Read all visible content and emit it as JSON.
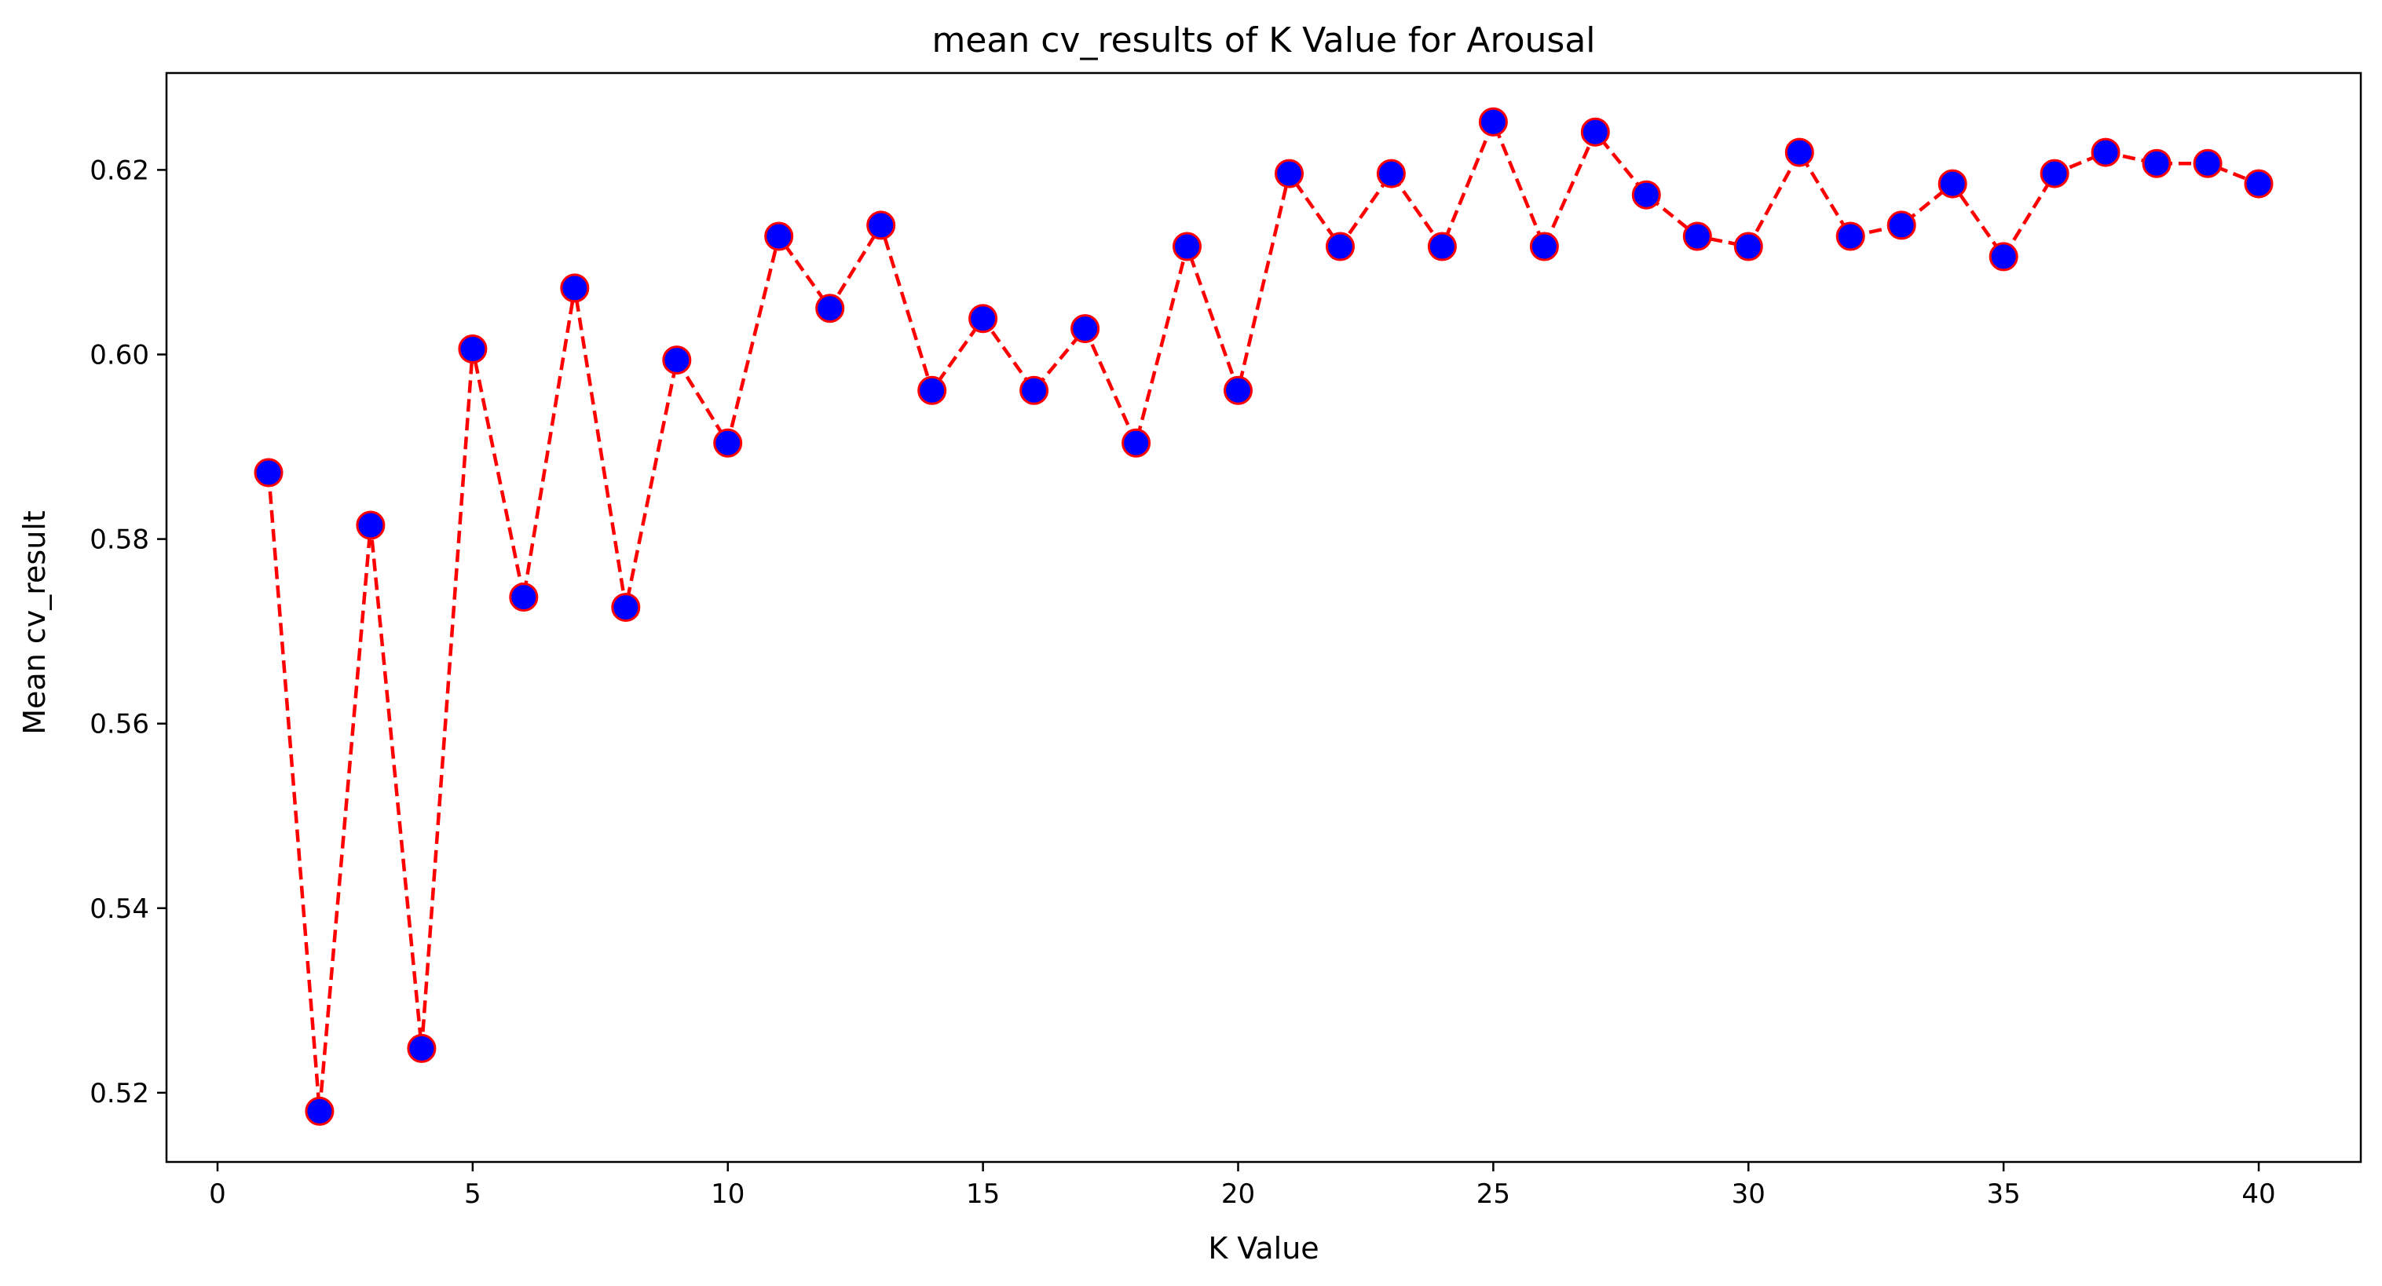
{
  "chart_data": {
    "type": "line",
    "title": "mean cv_results of  K Value for Arousal",
    "xlabel": "K Value",
    "ylabel": "Mean cv_result",
    "xlim": [
      -1,
      42
    ],
    "ylim": [
      0.5125,
      0.6305
    ],
    "xticks": [
      "0",
      "5",
      "10",
      "15",
      "20",
      "25",
      "30",
      "35",
      "40"
    ],
    "yticks": [
      "0.52",
      "0.54",
      "0.56",
      "0.58",
      "0.60",
      "0.62"
    ],
    "grid": false,
    "legend": false,
    "colors": {
      "line": "#ff0000",
      "marker_fill": "#0000ff",
      "marker_edge": "#ff0000",
      "axes": "#000000"
    },
    "line_style": "dashed",
    "marker": "circle",
    "series": [
      {
        "x": [
          1,
          2,
          3,
          4,
          5,
          6,
          7,
          8,
          9,
          10,
          11,
          12,
          13,
          14,
          15,
          16,
          17,
          18,
          19,
          20,
          21,
          22,
          23,
          24,
          25,
          26,
          27,
          28,
          29,
          30,
          31,
          32,
          33,
          34,
          35,
          36,
          37,
          38,
          39,
          40
        ],
        "values": [
          0.5872,
          0.518,
          0.5815,
          0.5248,
          0.6006,
          0.5737,
          0.6072,
          0.5726,
          0.5994,
          0.5904,
          0.6128,
          0.605,
          0.614,
          0.5961,
          0.6039,
          0.5961,
          0.6028,
          0.5904,
          0.6117,
          0.5961,
          0.6196,
          0.6117,
          0.6196,
          0.6117,
          0.6252,
          0.6117,
          0.6241,
          0.6173,
          0.6128,
          0.6117,
          0.6219,
          0.6128,
          0.614,
          0.6185,
          0.6106,
          0.6196,
          0.6219,
          0.6207,
          0.6207,
          0.6185
        ]
      }
    ]
  }
}
